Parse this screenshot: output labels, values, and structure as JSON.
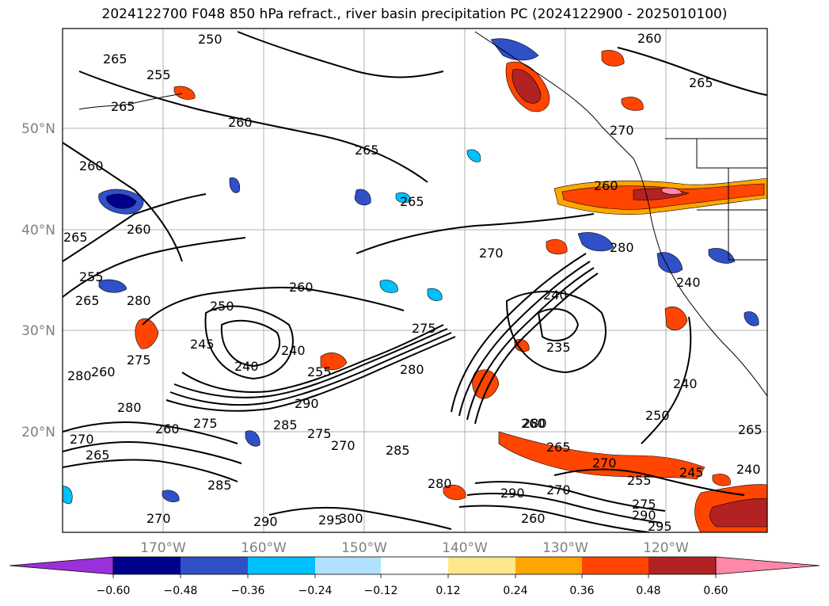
{
  "title": "2024122700 F048 850 hPa refract., river basin precipitation PC (2024122900 - 2025010100)",
  "map": {
    "lon_labels": [
      "170°W",
      "160°W",
      "150°W",
      "140°W",
      "130°W",
      "120°W"
    ],
    "lat_labels": [
      "50°N",
      "40°N",
      "30°N",
      "20°N"
    ],
    "contour_labels": [
      "250",
      "265",
      "255",
      "265",
      "260",
      "265",
      "260",
      "265",
      "260",
      "265",
      "260",
      "265",
      "270",
      "280",
      "255",
      "265",
      "280",
      "275",
      "260",
      "280",
      "245",
      "250",
      "240",
      "240",
      "255",
      "275",
      "260",
      "290",
      "275",
      "270",
      "260",
      "285",
      "280",
      "275",
      "295",
      "290",
      "300",
      "240",
      "235",
      "240",
      "280",
      "260",
      "265",
      "270",
      "255",
      "245",
      "250",
      "240",
      "275",
      "290",
      "295",
      "240",
      "260",
      "270",
      "265",
      "285",
      "280",
      "270",
      "290",
      "260",
      "285",
      "270",
      "265",
      "270",
      "280"
    ]
  },
  "colorbar": {
    "tick_labels": [
      "−0.60",
      "−0.48",
      "−0.36",
      "−0.24",
      "−0.12",
      "0.12",
      "0.24",
      "0.36",
      "0.48",
      "0.60"
    ],
    "colors": [
      "#9b30d9",
      "#00008b",
      "#3050c8",
      "#00bfff",
      "#b0e2ff",
      "#ffffff",
      "#ffe88a",
      "#ffa500",
      "#ff4500",
      "#b22222",
      "#ff88a8"
    ]
  }
}
